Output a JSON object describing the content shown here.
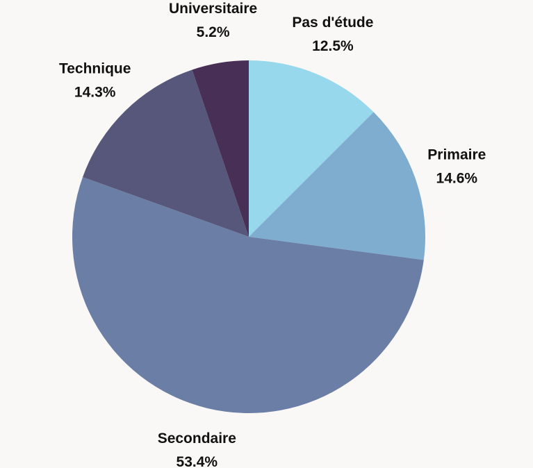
{
  "chart_data": {
    "type": "pie",
    "title": "",
    "slices": [
      {
        "label": "Pas d'étude",
        "value": 12.5,
        "value_label": "12.5%",
        "color": "#98d8ec"
      },
      {
        "label": "Primaire",
        "value": 14.6,
        "value_label": "14.6%",
        "color": "#7eadcf"
      },
      {
        "label": "Secondaire",
        "value": 53.4,
        "value_label": "53.4%",
        "color": "#6b7ea6"
      },
      {
        "label": "Technique",
        "value": 14.3,
        "value_label": "14.3%",
        "color": "#57567b"
      },
      {
        "label": "Universitaire",
        "value": 5.2,
        "value_label": "5.2%",
        "color": "#472f55"
      }
    ],
    "start_angle": "12 o'clock",
    "direction": "clockwise",
    "legend": "none",
    "background": "#f9f8f7"
  }
}
